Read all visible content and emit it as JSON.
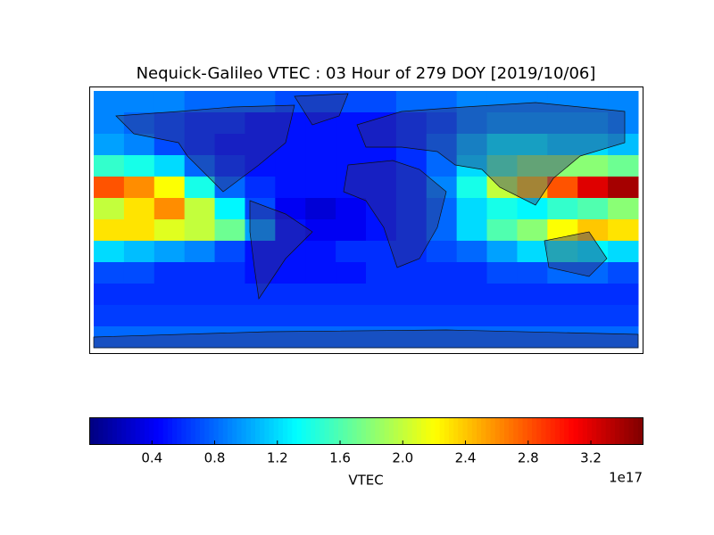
{
  "chart_data": {
    "type": "heatmap",
    "title": "Nequick-Galileo VTEC : 03 Hour of 279 DOY [2019/10/06]",
    "x": [
      -170,
      -150,
      -130,
      -110,
      -90,
      -70,
      -50,
      -30,
      -10,
      10,
      30,
      50,
      70,
      90,
      110,
      130,
      150,
      170
    ],
    "y": [
      82.5,
      67.5,
      52.5,
      37.5,
      22.5,
      7.5,
      -7.5,
      -22.5,
      -37.5,
      -52.5,
      -67.5,
      -82.5
    ],
    "xlim": [
      -180,
      180
    ],
    "ylim": [
      -90,
      90
    ],
    "z": [
      [
        0.9,
        0.9,
        0.9,
        0.8,
        0.8,
        0.8,
        0.7,
        0.7,
        0.7,
        0.7,
        0.8,
        0.8,
        0.9,
        0.9,
        0.9,
        0.9,
        0.9,
        0.9
      ],
      [
        0.9,
        0.8,
        0.7,
        0.6,
        0.6,
        0.5,
        0.5,
        0.5,
        0.5,
        0.5,
        0.6,
        0.7,
        0.9,
        1.0,
        1.0,
        1.0,
        1.0,
        0.9
      ],
      [
        1.0,
        0.9,
        0.7,
        0.6,
        0.5,
        0.5,
        0.5,
        0.5,
        0.5,
        0.5,
        0.6,
        0.8,
        1.1,
        1.3,
        1.3,
        1.2,
        1.2,
        1.1
      ],
      [
        1.5,
        1.4,
        1.2,
        0.8,
        0.6,
        0.5,
        0.5,
        0.5,
        0.5,
        0.5,
        0.6,
        0.8,
        1.2,
        1.6,
        1.8,
        1.8,
        1.8,
        1.7
      ],
      [
        2.8,
        2.6,
        2.2,
        1.4,
        0.8,
        0.6,
        0.5,
        0.5,
        0.5,
        0.5,
        0.6,
        0.9,
        1.4,
        2.0,
        2.4,
        2.8,
        3.2,
        3.4
      ],
      [
        2.0,
        2.3,
        2.6,
        2.0,
        1.3,
        0.7,
        0.4,
        0.3,
        0.4,
        0.5,
        0.6,
        0.8,
        1.2,
        1.4,
        1.3,
        1.5,
        1.6,
        1.8
      ],
      [
        2.3,
        2.3,
        2.1,
        2.0,
        1.7,
        1.0,
        0.5,
        0.4,
        0.4,
        0.5,
        0.6,
        0.8,
        1.2,
        1.6,
        1.8,
        2.2,
        2.4,
        2.3
      ],
      [
        1.2,
        1.1,
        1.0,
        0.9,
        0.7,
        0.5,
        0.5,
        0.5,
        0.6,
        0.6,
        0.6,
        0.7,
        0.8,
        1.0,
        1.2,
        1.4,
        1.3,
        1.2
      ],
      [
        0.7,
        0.7,
        0.6,
        0.6,
        0.6,
        0.5,
        0.5,
        0.5,
        0.5,
        0.6,
        0.6,
        0.6,
        0.6,
        0.7,
        0.7,
        0.8,
        0.8,
        0.7
      ],
      [
        0.6,
        0.6,
        0.6,
        0.6,
        0.6,
        0.6,
        0.6,
        0.6,
        0.6,
        0.6,
        0.6,
        0.6,
        0.6,
        0.6,
        0.6,
        0.6,
        0.6,
        0.6
      ],
      [
        0.65,
        0.65,
        0.65,
        0.65,
        0.65,
        0.65,
        0.65,
        0.65,
        0.65,
        0.65,
        0.65,
        0.65,
        0.65,
        0.65,
        0.65,
        0.65,
        0.65,
        0.65
      ],
      [
        0.8,
        0.8,
        0.8,
        0.8,
        0.8,
        0.8,
        0.8,
        0.8,
        0.8,
        0.8,
        0.8,
        0.8,
        0.8,
        0.8,
        0.8,
        0.8,
        0.8,
        0.8
      ]
    ],
    "colorbar": {
      "label": "VTEC",
      "offset_label": "1e17",
      "colormap": "jet",
      "lim": [
        0,
        3.53
      ],
      "ticks": [
        0.4,
        0.8,
        1.2,
        1.6,
        {
          "value": 2,
          "label": "2.0"
        },
        2.4,
        2.8,
        3.2
      ]
    }
  }
}
